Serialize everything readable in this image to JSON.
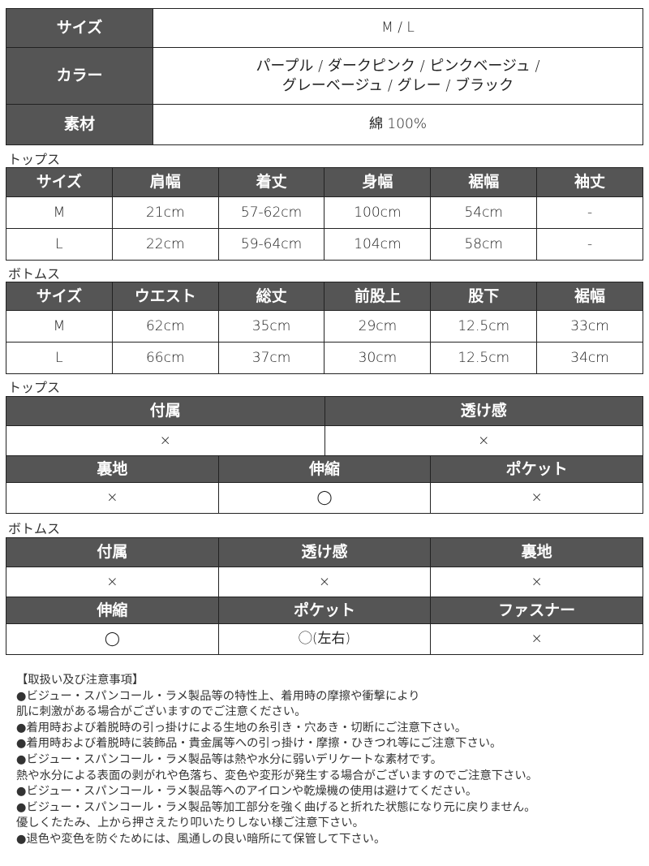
{
  "spec": [
    {
      "label": "サイズ",
      "value": "M / L"
    },
    {
      "label": "カラー",
      "value": "パープル / ダークピンク / ピンクベージュ /\nグレーベージュ / グレー / ブラック"
    },
    {
      "label": "素材",
      "value": "綿 100%"
    }
  ],
  "tops_size": {
    "title": "トップス",
    "headers": [
      "サイズ",
      "肩幅",
      "着丈",
      "身幅",
      "裾幅",
      "袖丈"
    ],
    "rows": [
      [
        "M",
        "21cm",
        "57-62cm",
        "100cm",
        "54cm",
        "-"
      ],
      [
        "L",
        "22cm",
        "59-64cm",
        "104cm",
        "58cm",
        "-"
      ]
    ]
  },
  "bottoms_size": {
    "title": "ボトムス",
    "headers": [
      "サイズ",
      "ウエスト",
      "総丈",
      "前股上",
      "股下",
      "裾幅"
    ],
    "rows": [
      [
        "M",
        "62cm",
        "35cm",
        "29cm",
        "12.5cm",
        "33cm"
      ],
      [
        "L",
        "66cm",
        "37cm",
        "30cm",
        "12.5cm",
        "34cm"
      ]
    ]
  },
  "tops_attr": {
    "title": "トップス",
    "h1": [
      "付属",
      "透け感"
    ],
    "v1": [
      "×",
      "×"
    ],
    "h2": [
      "裏地",
      "伸縮",
      "ポケット"
    ],
    "v2": [
      "×",
      "◯",
      "×"
    ]
  },
  "bottoms_attr": {
    "title": "ボトムス",
    "h1": [
      "付属",
      "透け感",
      "裏地"
    ],
    "v1": [
      "×",
      "×",
      "×"
    ],
    "h2": [
      "伸縮",
      "ポケット",
      "ファスナー"
    ],
    "v2": [
      "◯",
      "◯(左右)",
      "×"
    ]
  },
  "notes": [
    "【取扱い及び注意事項】",
    "●ビジュー・スパンコール・ラメ製品等の特性上、着用時の摩擦や衝撃により",
    "肌に刺激がある場合がございますのでご注意ください。",
    "●着用時および着脱時の引っ掛けによる生地の糸引き・穴あき・切断にご注意下さい。",
    "●着用時および着脱時に装飾品・貴金属等への引っ掛け・摩擦・ひきつれ等にご注意下さい。",
    "●ビジュー・スパンコール・ラメ製品等は熱や水分に弱いデリケートな素材です。",
    "熱や水分による表面の剥がれや色落ち、変色や変形が発生する場合がございますのでご注意下さい。",
    "●ビジュー・スパンコール・ラメ製品等へのアイロンや乾燥機の使用は避けてください。",
    "●ビジュー・スパンコール・ラメ製品等加工部分を強く曲げると折れた状態になり元に戻りません。",
    "優しくたたみ、上から押さえたり叩いたりしない様ご注意下さい。",
    "●退色や変色を防ぐためには、風通しの良い暗所にて保管して下さい。"
  ]
}
